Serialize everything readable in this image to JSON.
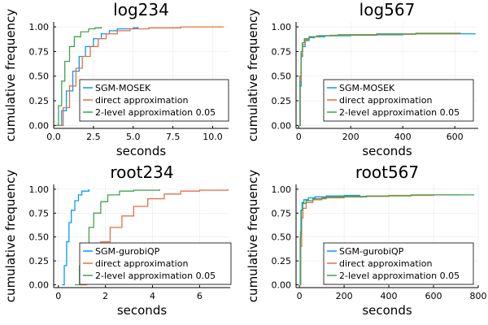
{
  "chart_data": [
    {
      "type": "line",
      "title": "log234",
      "xlabel": "seconds",
      "ylabel": "cumulative frequency",
      "xlim": [
        0,
        11
      ],
      "ylim": [
        -0.03,
        1.05
      ],
      "xticks": [
        0.0,
        2.5,
        5.0,
        7.5,
        10.0
      ],
      "xtick_labels": [
        "0.0",
        "2.5",
        "5.0",
        "7.5",
        "10.0"
      ],
      "yticks": [
        0,
        0.25,
        0.5,
        0.75,
        1.0
      ],
      "ytick_labels": [
        "0.00",
        "0.25",
        "0.50",
        "0.75",
        "1.00"
      ],
      "grid": true,
      "legend_position": "bottom-right",
      "series": [
        {
          "name": "SGM-MOSEK",
          "color": "#009AFA",
          "points": [
            [
              0.2,
              0.0
            ],
            [
              0.5,
              0.15
            ],
            [
              0.8,
              0.35
            ],
            [
              1.2,
              0.55
            ],
            [
              1.6,
              0.7
            ],
            [
              2.0,
              0.8
            ],
            [
              2.5,
              0.88
            ],
            [
              3.0,
              0.93
            ],
            [
              3.5,
              0.96
            ],
            [
              4.0,
              0.98
            ],
            [
              5.0,
              0.99
            ],
            [
              5.3,
              1.0
            ]
          ]
        },
        {
          "name": "direct approximation",
          "color": "#E36F47",
          "points": [
            [
              0.3,
              0.0
            ],
            [
              0.6,
              0.18
            ],
            [
              1.0,
              0.4
            ],
            [
              1.4,
              0.58
            ],
            [
              1.8,
              0.7
            ],
            [
              2.3,
              0.8
            ],
            [
              2.8,
              0.88
            ],
            [
              3.3,
              0.93
            ],
            [
              4.0,
              0.96
            ],
            [
              4.8,
              0.98
            ],
            [
              6.0,
              0.99
            ],
            [
              8.0,
              1.0
            ],
            [
              10.7,
              1.0
            ]
          ]
        },
        {
          "name": "2-level approximation 0.05",
          "color": "#3EA44E",
          "points": [
            [
              0.15,
              0.0
            ],
            [
              0.3,
              0.2
            ],
            [
              0.5,
              0.45
            ],
            [
              0.7,
              0.65
            ],
            [
              1.0,
              0.8
            ],
            [
              1.3,
              0.9
            ],
            [
              1.7,
              0.95
            ],
            [
              2.2,
              0.98
            ],
            [
              2.6,
              0.99
            ],
            [
              3.0,
              1.0
            ]
          ]
        }
      ]
    },
    {
      "type": "line",
      "title": "log567",
      "xlabel": "seconds",
      "ylabel": "cumulative frequency",
      "xlim": [
        -10,
        690
      ],
      "ylim": [
        -0.03,
        1.05
      ],
      "xticks": [
        0,
        200,
        400,
        600
      ],
      "xtick_labels": [
        "0",
        "200",
        "400",
        "600"
      ],
      "yticks": [
        0,
        0.25,
        0.5,
        0.75,
        1.0
      ],
      "ytick_labels": [
        "0.00",
        "0.25",
        "0.50",
        "0.75",
        "1.00"
      ],
      "grid": true,
      "legend_position": "bottom-right",
      "series": [
        {
          "name": "SGM-MOSEK",
          "color": "#009AFA",
          "points": [
            [
              3,
              0.0
            ],
            [
              6,
              0.4
            ],
            [
              10,
              0.7
            ],
            [
              15,
              0.8
            ],
            [
              25,
              0.86
            ],
            [
              40,
              0.89
            ],
            [
              60,
              0.9
            ],
            [
              100,
              0.91
            ],
            [
              200,
              0.92
            ],
            [
              400,
              0.93
            ],
            [
              680,
              0.93
            ]
          ]
        },
        {
          "name": "direct approximation",
          "color": "#E36F47",
          "points": [
            [
              3,
              0.0
            ],
            [
              6,
              0.45
            ],
            [
              10,
              0.72
            ],
            [
              15,
              0.82
            ],
            [
              25,
              0.87
            ],
            [
              40,
              0.9
            ],
            [
              70,
              0.91
            ],
            [
              120,
              0.915
            ],
            [
              300,
              0.925
            ],
            [
              450,
              0.93
            ],
            [
              620,
              0.94
            ]
          ]
        },
        {
          "name": "2-level approximation 0.05",
          "color": "#3EA44E",
          "points": [
            [
              2,
              0.0
            ],
            [
              5,
              0.5
            ],
            [
              9,
              0.75
            ],
            [
              14,
              0.84
            ],
            [
              22,
              0.88
            ],
            [
              40,
              0.9
            ],
            [
              80,
              0.91
            ],
            [
              150,
              0.92
            ],
            [
              300,
              0.93
            ],
            [
              450,
              0.935
            ],
            [
              620,
              0.94
            ]
          ]
        }
      ]
    },
    {
      "type": "line",
      "title": "root234",
      "xlabel": "seconds",
      "ylabel": "cumulative frequency",
      "xlim": [
        -0.2,
        7.3
      ],
      "ylim": [
        -0.03,
        1.05
      ],
      "xticks": [
        0,
        2,
        4,
        6
      ],
      "xtick_labels": [
        "0",
        "2",
        "4",
        "6"
      ],
      "yticks": [
        0,
        0.25,
        0.5,
        0.75,
        1.0
      ],
      "ytick_labels": [
        "0.00",
        "0.25",
        "0.50",
        "0.75",
        "1.00"
      ],
      "grid": true,
      "legend_position": "bottom-right",
      "series": [
        {
          "name": "SGM-gurobiQP",
          "color": "#009AFA",
          "points": [
            [
              0.15,
              0.0
            ],
            [
              0.25,
              0.2
            ],
            [
              0.35,
              0.45
            ],
            [
              0.45,
              0.65
            ],
            [
              0.55,
              0.78
            ],
            [
              0.7,
              0.88
            ],
            [
              0.85,
              0.94
            ],
            [
              1.0,
              0.98
            ],
            [
              1.3,
              1.0
            ]
          ]
        },
        {
          "name": "direct approximation",
          "color": "#E36F47",
          "points": [
            [
              0.9,
              0.0
            ],
            [
              1.2,
              0.15
            ],
            [
              1.5,
              0.3
            ],
            [
              1.8,
              0.45
            ],
            [
              2.2,
              0.6
            ],
            [
              2.7,
              0.72
            ],
            [
              3.2,
              0.82
            ],
            [
              3.8,
              0.9
            ],
            [
              4.5,
              0.95
            ],
            [
              5.2,
              0.98
            ],
            [
              6.0,
              0.99
            ],
            [
              7.2,
              1.0
            ]
          ]
        },
        {
          "name": "2-level approximation 0.05",
          "color": "#3EA44E",
          "points": [
            [
              0.7,
              0.0
            ],
            [
              0.9,
              0.2
            ],
            [
              1.1,
              0.4
            ],
            [
              1.3,
              0.6
            ],
            [
              1.5,
              0.75
            ],
            [
              1.8,
              0.87
            ],
            [
              2.1,
              0.94
            ],
            [
              2.6,
              0.98
            ],
            [
              3.2,
              0.99
            ],
            [
              4.3,
              1.0
            ]
          ]
        }
      ]
    },
    {
      "type": "line",
      "title": "root567",
      "xlabel": "seconds",
      "ylabel": "cumulative frequency",
      "xlim": [
        -15,
        800
      ],
      "ylim": [
        -0.03,
        1.05
      ],
      "xticks": [
        0,
        200,
        400,
        600,
        800
      ],
      "xtick_labels": [
        "0",
        "200",
        "400",
        "600",
        "800"
      ],
      "yticks": [
        0,
        0.25,
        0.5,
        0.75,
        1.0
      ],
      "ytick_labels": [
        "0.00",
        "0.25",
        "0.50",
        "0.75",
        "1.00"
      ],
      "grid": true,
      "legend_position": "bottom-right",
      "series": [
        {
          "name": "SGM-gurobiQP",
          "color": "#009AFA",
          "points": [
            [
              2,
              0.0
            ],
            [
              4,
              0.5
            ],
            [
              7,
              0.78
            ],
            [
              12,
              0.86
            ],
            [
              20,
              0.89
            ],
            [
              40,
              0.91
            ],
            [
              70,
              0.92
            ],
            [
              120,
              0.93
            ],
            [
              200,
              0.935
            ],
            [
              270,
              0.94
            ]
          ]
        },
        {
          "name": "direct approximation",
          "color": "#E36F47",
          "points": [
            [
              3,
              0.0
            ],
            [
              6,
              0.4
            ],
            [
              10,
              0.7
            ],
            [
              16,
              0.8
            ],
            [
              30,
              0.86
            ],
            [
              60,
              0.89
            ],
            [
              100,
              0.91
            ],
            [
              200,
              0.925
            ],
            [
              400,
              0.935
            ],
            [
              600,
              0.94
            ],
            [
              720,
              0.945
            ]
          ]
        },
        {
          "name": "2-level approximation 0.05",
          "color": "#3EA44E",
          "points": [
            [
              2,
              0.0
            ],
            [
              5,
              0.55
            ],
            [
              9,
              0.78
            ],
            [
              15,
              0.85
            ],
            [
              30,
              0.88
            ],
            [
              60,
              0.9
            ],
            [
              120,
              0.92
            ],
            [
              300,
              0.93
            ],
            [
              500,
              0.94
            ],
            [
              780,
              0.945
            ]
          ]
        }
      ]
    }
  ]
}
